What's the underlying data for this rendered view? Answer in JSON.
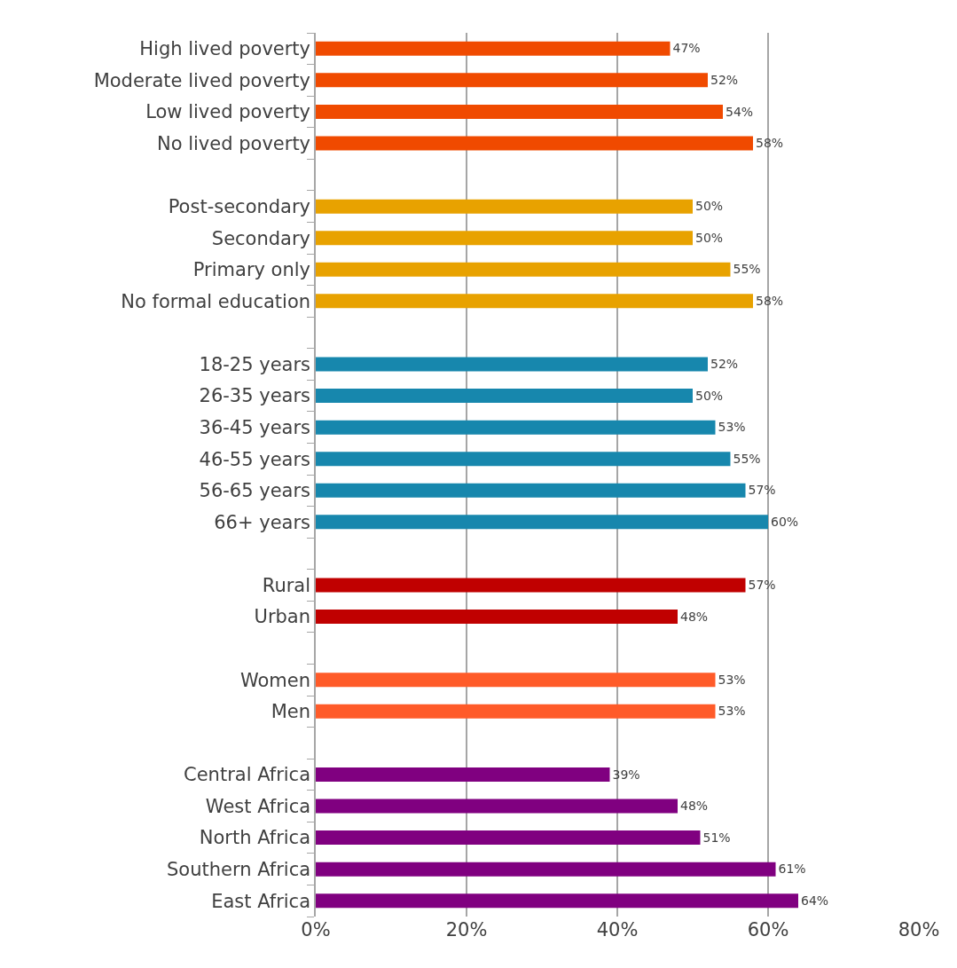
{
  "chart_data": {
    "type": "bar",
    "orientation": "horizontal",
    "categories": [
      "High lived poverty",
      "Moderate lived poverty",
      "Low lived poverty",
      "No lived poverty",
      null,
      "Post-secondary",
      "Secondary",
      "Primary only",
      "No formal education",
      null,
      "18-25 years",
      "26-35 years",
      "36-45 years",
      "46-55 years",
      "56-65 years",
      "66+ years",
      null,
      "Rural",
      "Urban",
      null,
      "Women",
      "Men",
      null,
      "Central Africa",
      "West Africa",
      "North Africa",
      "Southern Africa",
      "East Africa"
    ],
    "values": [
      47,
      52,
      54,
      58,
      null,
      50,
      50,
      55,
      58,
      null,
      52,
      50,
      53,
      55,
      57,
      60,
      null,
      57,
      48,
      null,
      53,
      53,
      null,
      39,
      48,
      51,
      61,
      64
    ],
    "value_labels": [
      "47%",
      "52%",
      "54%",
      "58%",
      null,
      "50%",
      "50%",
      "55%",
      "58%",
      null,
      "52%",
      "50%",
      "53%",
      "55%",
      "57%",
      "60%",
      null,
      "57%",
      "48%",
      null,
      "53%",
      "53%",
      null,
      "39%",
      "48%",
      "51%",
      "61%",
      "64%"
    ],
    "colors": [
      "#f04a00",
      "#f04a00",
      "#f04a00",
      "#f04a00",
      null,
      "#e8a200",
      "#e8a200",
      "#e8a200",
      "#e8a200",
      null,
      "#1787ad",
      "#1787ad",
      "#1787ad",
      "#1787ad",
      "#1787ad",
      "#1787ad",
      null,
      "#c00000",
      "#c00000",
      null,
      "#ff5b29",
      "#ff5b29",
      null,
      "#800080",
      "#800080",
      "#800080",
      "#800080",
      "#800080"
    ],
    "xlim": [
      0,
      80
    ],
    "xticks": [
      {
        "value": 0,
        "label": "0%"
      },
      {
        "value": 20,
        "label": "20%"
      },
      {
        "value": 40,
        "label": "40%"
      },
      {
        "value": 60,
        "label": "60%"
      },
      {
        "value": 80,
        "label": "80%"
      }
    ],
    "grid": "x"
  }
}
